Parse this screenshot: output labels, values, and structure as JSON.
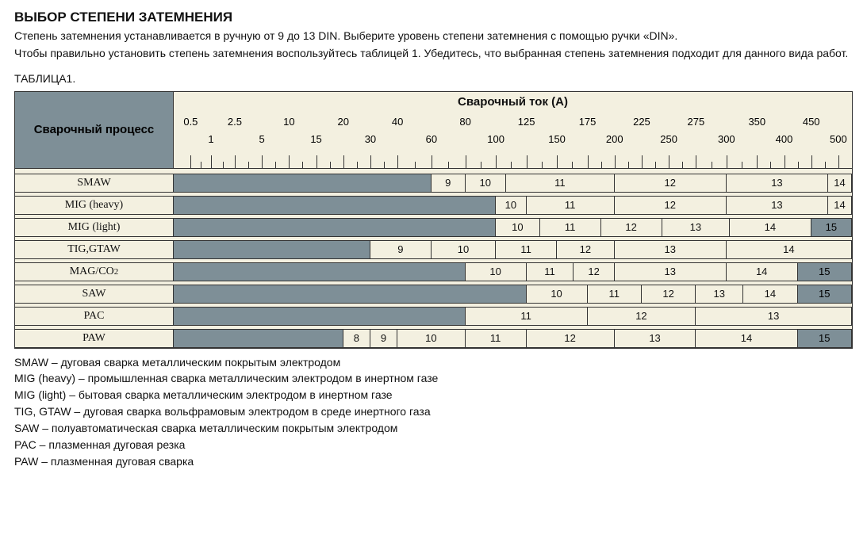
{
  "title": "ВЫБОР СТЕПЕНИ ЗАТЕМНЕНИЯ",
  "intro1": "Степень затемнения устанавливается в ручную от 9 до 13 DIN. Выберите уровень степени затемнения с помощью ручки «DIN».",
  "intro2": "Чтобы правильно установить степень затемнения воспользуйтесь таблицей 1. Убедитесь, что выбранная степень затемнения подходит для данного вида работ.",
  "table_caption": "ТАБЛИЦА1.",
  "header": {
    "left": "Сварочный процесс",
    "right": "Сварочный ток (A)"
  },
  "colors": {
    "blank_fill": "#7e8f97",
    "value_fill": "#f3f0e0",
    "border": "#333333",
    "chart_bg": "#f3f0e0"
  },
  "axis": {
    "upper": [
      0.5,
      2.5,
      10,
      20,
      40,
      80,
      125,
      175,
      225,
      275,
      350,
      450
    ],
    "lower": [
      1,
      5,
      15,
      30,
      60,
      100,
      150,
      200,
      250,
      300,
      400,
      500
    ],
    "pos_upper": [
      2.5,
      9.0,
      17.0,
      25.0,
      33.0,
      43.0,
      52.0,
      61.0,
      69.0,
      77.0,
      86.0,
      94.0
    ],
    "pos_lower": [
      5.5,
      13.0,
      21.0,
      29.0,
      38.0,
      47.5,
      56.5,
      65.0,
      73.0,
      81.5,
      90.0,
      98.0
    ],
    "ticks": [
      2.5,
      5.5,
      9.0,
      13.0,
      17.0,
      21.0,
      25.0,
      29.0,
      33.0,
      38.0,
      43.0,
      47.5,
      52.0,
      56.5,
      61.0,
      65.0,
      69.0,
      73.0,
      77.0,
      81.5,
      86.0,
      90.0,
      94.0,
      98.0
    ]
  },
  "rows": [
    {
      "name": "SMAW",
      "segments": [
        {
          "label": "",
          "from": 0,
          "to": 38,
          "blank": true
        },
        {
          "label": "9",
          "from": 38,
          "to": 43
        },
        {
          "label": "10",
          "from": 43,
          "to": 49
        },
        {
          "label": "11",
          "from": 49,
          "to": 65
        },
        {
          "label": "12",
          "from": 65,
          "to": 81.5
        },
        {
          "label": "13",
          "from": 81.5,
          "to": 96.5
        },
        {
          "label": "14",
          "from": 96.5,
          "to": 100
        }
      ]
    },
    {
      "name": "MIG (heavy)",
      "segments": [
        {
          "label": "",
          "from": 0,
          "to": 47.5,
          "blank": true
        },
        {
          "label": "10",
          "from": 47.5,
          "to": 52
        },
        {
          "label": "11",
          "from": 52,
          "to": 65
        },
        {
          "label": "12",
          "from": 65,
          "to": 81.5
        },
        {
          "label": "13",
          "from": 81.5,
          "to": 96.5
        },
        {
          "label": "14",
          "from": 96.5,
          "to": 100
        }
      ]
    },
    {
      "name": "MIG (light)",
      "segments": [
        {
          "label": "",
          "from": 0,
          "to": 47.5,
          "blank": true
        },
        {
          "label": "10",
          "from": 47.5,
          "to": 54
        },
        {
          "label": "11",
          "from": 54,
          "to": 63
        },
        {
          "label": "12",
          "from": 63,
          "to": 72
        },
        {
          "label": "13",
          "from": 72,
          "to": 82
        },
        {
          "label": "14",
          "from": 82,
          "to": 94
        },
        {
          "label": "15",
          "from": 94,
          "to": 100,
          "blank": true,
          "text": true
        }
      ]
    },
    {
      "name": "TIG,GTAW",
      "segments": [
        {
          "label": "",
          "from": 0,
          "to": 29,
          "blank": true
        },
        {
          "label": "9",
          "from": 29,
          "to": 38
        },
        {
          "label": "10",
          "from": 38,
          "to": 47.5
        },
        {
          "label": "11",
          "from": 47.5,
          "to": 56.5
        },
        {
          "label": "12",
          "from": 56.5,
          "to": 65
        },
        {
          "label": "13",
          "from": 65,
          "to": 81.5
        },
        {
          "label": "14",
          "from": 81.5,
          "to": 100
        }
      ]
    },
    {
      "name": "MAG/CO₂",
      "segments": [
        {
          "label": "",
          "from": 0,
          "to": 43,
          "blank": true
        },
        {
          "label": "10",
          "from": 43,
          "to": 52
        },
        {
          "label": "11",
          "from": 52,
          "to": 59
        },
        {
          "label": "12",
          "from": 59,
          "to": 65
        },
        {
          "label": "13",
          "from": 65,
          "to": 81.5
        },
        {
          "label": "14",
          "from": 81.5,
          "to": 92
        },
        {
          "label": "15",
          "from": 92,
          "to": 100,
          "blank": true,
          "text": true
        }
      ]
    },
    {
      "name": "SAW",
      "segments": [
        {
          "label": "",
          "from": 0,
          "to": 52,
          "blank": true
        },
        {
          "label": "10",
          "from": 52,
          "to": 61
        },
        {
          "label": "11",
          "from": 61,
          "to": 69
        },
        {
          "label": "12",
          "from": 69,
          "to": 77
        },
        {
          "label": "13",
          "from": 77,
          "to": 84
        },
        {
          "label": "14",
          "from": 84,
          "to": 92
        },
        {
          "label": "15",
          "from": 92,
          "to": 100,
          "blank": true,
          "text": true
        }
      ]
    },
    {
      "name": "PAC",
      "segments": [
        {
          "label": "",
          "from": 0,
          "to": 43,
          "blank": true
        },
        {
          "label": "11",
          "from": 43,
          "to": 61
        },
        {
          "label": "12",
          "from": 61,
          "to": 77
        },
        {
          "label": "13",
          "from": 77,
          "to": 100
        }
      ]
    },
    {
      "name": "PAW",
      "segments": [
        {
          "label": "",
          "from": 0,
          "to": 25,
          "blank": true
        },
        {
          "label": "8",
          "from": 25,
          "to": 29
        },
        {
          "label": "9",
          "from": 29,
          "to": 33
        },
        {
          "label": "10",
          "from": 33,
          "to": 43
        },
        {
          "label": "11",
          "from": 43,
          "to": 52
        },
        {
          "label": "12",
          "from": 52,
          "to": 65
        },
        {
          "label": "13",
          "from": 65,
          "to": 77
        },
        {
          "label": "14",
          "from": 77,
          "to": 92
        },
        {
          "label": "15",
          "from": 92,
          "to": 100,
          "blank": true,
          "text": true
        }
      ]
    }
  ],
  "legend": [
    "SMAW – дуговая сварка металлическим покрытым электродом",
    "MIG (heavy) – промышленная сварка металлическим электродом в инертном газе",
    "MIG (light) – бытовая сварка металлическим электродом в инертном газе",
    "TIG, GTAW – дуговая сварка вольфрамовым электродом в среде инертного газа",
    "SAW – полуавтоматическая сварка металлическим покрытым электродом",
    "PAC – плазменная дуговая резка",
    "PAW – плазменная дуговая сварка"
  ]
}
